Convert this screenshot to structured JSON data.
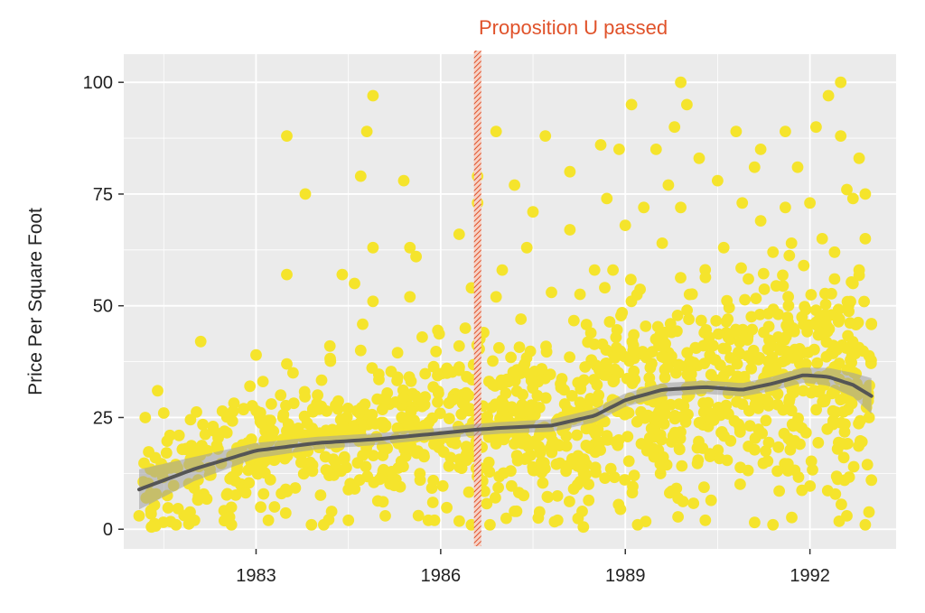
{
  "chart_data": {
    "type": "scatter",
    "ylabel": "Price Per Square Foot",
    "xlabel": "",
    "xlim": [
      1980.85,
      1993.4
    ],
    "ylim": [
      -4.4,
      106.3
    ],
    "x_ticks": [
      1983,
      1986,
      1989,
      1992
    ],
    "x_tick_labels": [
      "1983",
      "1986",
      "1989",
      "1992"
    ],
    "y_ticks": [
      0,
      25,
      50,
      75,
      100
    ],
    "y_tick_labels": [
      "0",
      "25",
      "50",
      "75",
      "100"
    ],
    "grid": true,
    "legend": "none",
    "colors": {
      "panel": "#ebebeb",
      "grid": "#ffffff",
      "points": "#f5e42c",
      "trend": "#555555",
      "band": "#9e9e9e",
      "annotation": "#e0522a"
    },
    "annotation": {
      "label": "Proposition U passed",
      "x": 1986.6
    },
    "outlier_points": [
      [
        1981.1,
        3
      ],
      [
        1981.2,
        25
      ],
      [
        1981.3,
        0.5
      ],
      [
        1981.4,
        31
      ],
      [
        1981.5,
        26
      ],
      [
        1981.6,
        21
      ],
      [
        1981.7,
        1
      ],
      [
        1982.0,
        2
      ],
      [
        1982.1,
        42
      ],
      [
        1982.3,
        23
      ],
      [
        1982.6,
        1
      ],
      [
        1982.8,
        27
      ],
      [
        1982.9,
        32
      ],
      [
        1983.0,
        39
      ],
      [
        1983.2,
        2
      ],
      [
        1983.3,
        5
      ],
      [
        1983.4,
        30
      ],
      [
        1983.5,
        37
      ],
      [
        1983.5,
        88
      ],
      [
        1983.5,
        57
      ],
      [
        1983.6,
        35
      ],
      [
        1983.8,
        75
      ],
      [
        1983.9,
        1
      ],
      [
        1984.0,
        30
      ],
      [
        1984.1,
        1
      ],
      [
        1984.2,
        41
      ],
      [
        1984.4,
        57
      ],
      [
        1984.5,
        2
      ],
      [
        1984.6,
        55
      ],
      [
        1984.7,
        40
      ],
      [
        1984.7,
        79
      ],
      [
        1984.8,
        89
      ],
      [
        1984.9,
        97
      ],
      [
        1984.9,
        63
      ],
      [
        1984.9,
        51
      ],
      [
        1985.1,
        3
      ],
      [
        1985.3,
        34
      ],
      [
        1985.4,
        78
      ],
      [
        1985.5,
        63
      ],
      [
        1985.5,
        52
      ],
      [
        1985.6,
        61
      ],
      [
        1985.7,
        43
      ],
      [
        1985.8,
        2
      ],
      [
        1985.9,
        2
      ],
      [
        1986.1,
        36
      ],
      [
        1986.2,
        29
      ],
      [
        1986.3,
        66
      ],
      [
        1986.3,
        41
      ],
      [
        1986.4,
        45
      ],
      [
        1986.5,
        1
      ],
      [
        1986.5,
        54
      ],
      [
        1986.6,
        73
      ],
      [
        1986.6,
        79
      ],
      [
        1986.7,
        44
      ],
      [
        1986.8,
        1
      ],
      [
        1986.9,
        52
      ],
      [
        1986.9,
        89
      ],
      [
        1987.0,
        58
      ],
      [
        1987.2,
        77
      ],
      [
        1987.2,
        4
      ],
      [
        1987.4,
        63
      ],
      [
        1987.5,
        71
      ],
      [
        1987.7,
        88
      ],
      [
        1987.8,
        53
      ],
      [
        1987.9,
        2
      ],
      [
        1988.1,
        80
      ],
      [
        1988.1,
        67
      ],
      [
        1988.3,
        4
      ],
      [
        1988.5,
        58
      ],
      [
        1988.6,
        86
      ],
      [
        1988.7,
        74
      ],
      [
        1988.8,
        58
      ],
      [
        1988.9,
        85
      ],
      [
        1989.0,
        68
      ],
      [
        1989.1,
        95
      ],
      [
        1989.2,
        1
      ],
      [
        1989.3,
        72
      ],
      [
        1989.5,
        85
      ],
      [
        1989.6,
        64
      ],
      [
        1989.7,
        77
      ],
      [
        1989.8,
        90
      ],
      [
        1989.9,
        100
      ],
      [
        1989.9,
        72
      ],
      [
        1990.0,
        95
      ],
      [
        1990.2,
        83
      ],
      [
        1990.3,
        2
      ],
      [
        1990.5,
        78
      ],
      [
        1990.6,
        63
      ],
      [
        1990.8,
        89
      ],
      [
        1990.9,
        73
      ],
      [
        1991.0,
        56
      ],
      [
        1991.1,
        81
      ],
      [
        1991.2,
        85
      ],
      [
        1991.2,
        69
      ],
      [
        1991.4,
        62
      ],
      [
        1991.4,
        1
      ],
      [
        1991.6,
        89
      ],
      [
        1991.6,
        72
      ],
      [
        1991.7,
        64
      ],
      [
        1991.8,
        81
      ],
      [
        1991.9,
        59
      ],
      [
        1992.0,
        73
      ],
      [
        1992.1,
        90
      ],
      [
        1992.2,
        65
      ],
      [
        1992.3,
        97
      ],
      [
        1992.4,
        62
      ],
      [
        1992.4,
        56
      ],
      [
        1992.5,
        88
      ],
      [
        1992.5,
        100
      ],
      [
        1992.6,
        76
      ],
      [
        1992.6,
        3
      ],
      [
        1992.7,
        74
      ],
      [
        1992.7,
        55
      ],
      [
        1992.8,
        83
      ],
      [
        1992.8,
        58
      ],
      [
        1992.9,
        75
      ],
      [
        1992.9,
        65
      ],
      [
        1992.9,
        1
      ],
      [
        1993.0,
        46
      ],
      [
        1993.0,
        11
      ]
    ],
    "trend": {
      "x": [
        1981.1,
        1982.0,
        1983.0,
        1984.0,
        1985.0,
        1986.0,
        1986.6,
        1987.0,
        1987.8,
        1988.5,
        1989.0,
        1989.6,
        1990.3,
        1990.9,
        1991.4,
        1991.9,
        1992.3,
        1992.7,
        1993.0
      ],
      "y": [
        8.9,
        13.5,
        17.6,
        19.3,
        20.2,
        21.5,
        22.3,
        22.7,
        23.2,
        25.4,
        28.9,
        31.2,
        31.8,
        31.2,
        32.6,
        34.5,
        34.1,
        32.3,
        29.8
      ],
      "band_halfwidth": [
        4.5,
        2.7,
        1.7,
        1.4,
        1.3,
        1.2,
        1.3,
        1.3,
        1.4,
        1.5,
        1.5,
        1.5,
        1.5,
        1.5,
        1.6,
        1.7,
        2.0,
        2.7,
        4.0
      ]
    }
  }
}
